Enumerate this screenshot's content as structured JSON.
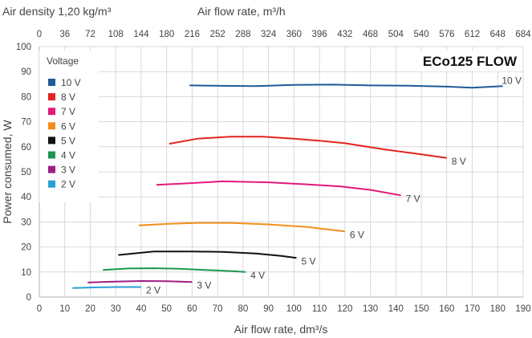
{
  "chart_data": {
    "type": "line",
    "top_label": "Air density 1,20 kg/m³",
    "x2label": "Air flow rate, m³/h",
    "x2ticks": [
      "0",
      "36",
      "72",
      "108",
      "144",
      "180",
      "216",
      "252",
      "288",
      "324",
      "360",
      "396",
      "432",
      "468",
      "504",
      "540",
      "576",
      "612",
      "648",
      "684"
    ],
    "xlabel": "Air flow rate, dm³/s",
    "ylabel": "Power consumed, W",
    "xlim": [
      0,
      190
    ],
    "ylim": [
      0,
      100
    ],
    "xticks": [
      "0",
      "10",
      "20",
      "30",
      "40",
      "50",
      "60",
      "70",
      "80",
      "90",
      "100",
      "110",
      "120",
      "130",
      "140",
      "150",
      "160",
      "170",
      "180",
      "190"
    ],
    "yticks": [
      "0",
      "10",
      "20",
      "30",
      "40",
      "50",
      "60",
      "70",
      "80",
      "90",
      "100"
    ],
    "grid": true,
    "brand_title": "ECo125 FLOW",
    "legend": {
      "title": "Voltage",
      "placement": "top-left"
    },
    "series": [
      {
        "name": "10 V",
        "color": "#1f5a9a",
        "x": [
          59,
          75,
          85,
          100,
          115,
          130,
          145,
          160,
          170,
          182
        ],
        "y": [
          84.5,
          84.3,
          84.2,
          84.7,
          84.8,
          84.5,
          84.4,
          84.0,
          83.6,
          84.2
        ]
      },
      {
        "name": "8 V",
        "color": "#e1241f",
        "x": [
          51,
          62,
          75,
          88,
          100,
          110,
          120,
          135,
          150,
          160
        ],
        "y": [
          61.2,
          63.2,
          64.0,
          64.0,
          63.2,
          62.4,
          61.4,
          59.0,
          57.0,
          55.5
        ]
      },
      {
        "name": "7 V",
        "color": "#e3197b",
        "x": [
          46,
          58,
          72,
          90,
          105,
          118,
          130,
          142
        ],
        "y": [
          44.8,
          45.4,
          46.2,
          45.8,
          45.0,
          44.2,
          42.8,
          40.6
        ]
      },
      {
        "name": "6 V",
        "color": "#f28e1c",
        "x": [
          39,
          50,
          62,
          75,
          90,
          105,
          120
        ],
        "y": [
          28.6,
          29.2,
          29.6,
          29.6,
          29.0,
          28.0,
          26.2
        ]
      },
      {
        "name": "5 V",
        "color": "#111111",
        "x": [
          31,
          45,
          60,
          72,
          85,
          95,
          101
        ],
        "y": [
          16.8,
          18.2,
          18.2,
          18.0,
          17.4,
          16.4,
          15.6
        ]
      },
      {
        "name": "4 V",
        "color": "#1e9650",
        "x": [
          25,
          35,
          45,
          55,
          65,
          75,
          81
        ],
        "y": [
          10.8,
          11.4,
          11.5,
          11.3,
          10.8,
          10.4,
          10.0
        ]
      },
      {
        "name": "3 V",
        "color": "#9e1f84",
        "x": [
          19,
          30,
          40,
          50,
          60
        ],
        "y": [
          5.8,
          6.2,
          6.4,
          6.3,
          6.0
        ]
      },
      {
        "name": "2 V",
        "color": "#2a9fd6",
        "x": [
          13,
          20,
          30,
          40
        ],
        "y": [
          3.6,
          3.8,
          4.0,
          4.0
        ]
      }
    ]
  }
}
